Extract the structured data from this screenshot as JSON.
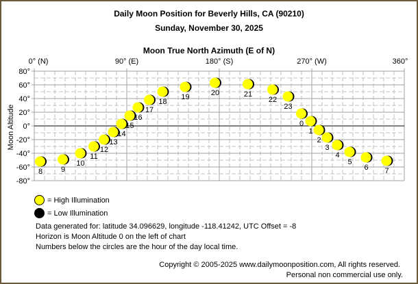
{
  "header": {
    "title": "Daily Moon Position for Beverly Hills, CA (90210)",
    "date": "Sunday, November 30, 2025",
    "x_axis_title": "Moon True North Azimuth (E of N)"
  },
  "legend": {
    "high": "= High Illumination",
    "low": "= Low Illumination",
    "high_color": "#ffff00",
    "low_color": "#000000"
  },
  "info": {
    "line1": "Data generated for: latitude 34.096629, longitude -118.41242, UTC Offset = -8",
    "line2": "Horizon is Moon Altitude 0 on the left of chart",
    "line3": "Numbers below the circles are the hour of the day local time."
  },
  "footer": {
    "copyright": "Copyright © 2005-2025 www.dailymoonposition.com, All rights reserved.",
    "usage": "Personal non commercial use only."
  },
  "colors": {
    "border": "#6b5a3a",
    "grid": "#c0c0c0",
    "horizon": "#000000",
    "moon_lit": "#ffff00",
    "moon_shadow": "#000000"
  },
  "chart_data": {
    "type": "scatter",
    "title": "Daily Moon Position for Beverly Hills, CA (90210)",
    "subtitle": "Sunday, November 30, 2025",
    "xlabel": "Moon True North Azimuth (E of N)",
    "ylabel": "Moon Altitude",
    "xlim": [
      0,
      360
    ],
    "ylim": [
      -80,
      80
    ],
    "x_ticks": [
      "0° (N)",
      "90° (E)",
      "180° (S)",
      "270° (W)",
      "360°"
    ],
    "x_tick_values": [
      0,
      90,
      180,
      270,
      360
    ],
    "y_ticks": [
      "80°",
      "60°",
      "40°",
      "20°",
      "0°",
      "-20°",
      "-40°",
      "-60°",
      "-80°"
    ],
    "y_tick_values": [
      80,
      60,
      40,
      20,
      0,
      -20,
      -40,
      -60,
      -80
    ],
    "grid": true,
    "legend_position": "bottom-left",
    "points": [
      {
        "hour": "8",
        "azimuth": 6,
        "altitude": -52
      },
      {
        "hour": "9",
        "azimuth": 28,
        "altitude": -49
      },
      {
        "hour": "10",
        "azimuth": 45,
        "altitude": -40
      },
      {
        "hour": "11",
        "azimuth": 58,
        "altitude": -30
      },
      {
        "hour": "12",
        "azimuth": 68,
        "altitude": -20
      },
      {
        "hour": "13",
        "azimuth": 77,
        "altitude": -9
      },
      {
        "hour": "14",
        "azimuth": 85,
        "altitude": 3
      },
      {
        "hour": "15",
        "azimuth": 93,
        "altitude": 15
      },
      {
        "hour": "16",
        "azimuth": 101,
        "altitude": 27
      },
      {
        "hour": "17",
        "azimuth": 112,
        "altitude": 38
      },
      {
        "hour": "18",
        "azimuth": 125,
        "altitude": 50
      },
      {
        "hour": "19",
        "azimuth": 147,
        "altitude": 57
      },
      {
        "hour": "20",
        "azimuth": 176,
        "altitude": 63
      },
      {
        "hour": "21",
        "azimuth": 208,
        "altitude": 61
      },
      {
        "hour": "22",
        "azimuth": 232,
        "altitude": 53
      },
      {
        "hour": "23",
        "azimuth": 247,
        "altitude": 43
      },
      {
        "hour": "0",
        "azimuth": 260,
        "altitude": 18
      },
      {
        "hour": "1",
        "azimuth": 269,
        "altitude": 7
      },
      {
        "hour": "2",
        "azimuth": 277,
        "altitude": -6
      },
      {
        "hour": "3",
        "azimuth": 285,
        "altitude": -17
      },
      {
        "hour": "4",
        "azimuth": 295,
        "altitude": -28
      },
      {
        "hour": "5",
        "azimuth": 307,
        "altitude": -38
      },
      {
        "hour": "6",
        "azimuth": 323,
        "altitude": -46
      },
      {
        "hour": "7",
        "azimuth": 343,
        "altitude": -51
      }
    ]
  }
}
